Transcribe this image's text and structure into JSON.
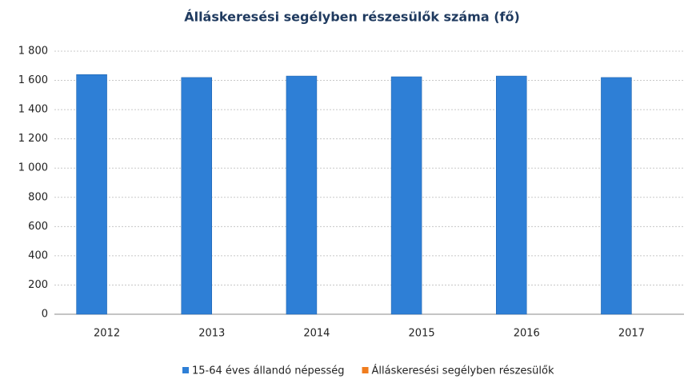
{
  "chart_data": {
    "type": "bar",
    "title": "Álláskeresési segélyben részesülők száma (fő)",
    "categories": [
      "2012",
      "2013",
      "2014",
      "2015",
      "2016",
      "2017"
    ],
    "series": [
      {
        "name": "15-64 éves állandó népesség",
        "color": "#2e7fd6",
        "values": [
          1640,
          1620,
          1630,
          1625,
          1630,
          1620
        ]
      },
      {
        "name": "Álláskeresési segélyben részesülők",
        "color": "#f07d1e",
        "values": [
          0,
          0,
          0,
          0,
          0,
          0
        ]
      }
    ],
    "ylim": [
      0,
      1800
    ],
    "yticks": [
      0,
      200,
      400,
      600,
      800,
      {
        "value": 1000,
        "label": "1 000"
      },
      {
        "value": 1200,
        "label": "1 200"
      },
      {
        "value": 1400,
        "label": "1 400"
      },
      {
        "value": 1600,
        "label": "1 600"
      },
      {
        "value": 1800,
        "label": "1 800"
      }
    ],
    "grid": true,
    "legend": "bottom"
  }
}
